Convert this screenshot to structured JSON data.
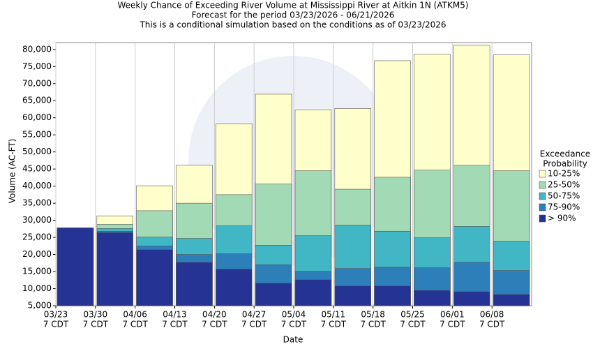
{
  "chart_data": {
    "type": "bar",
    "title": "Weekly Chance of Exceeding River Volume at Mississippi River at Aitkin 1N (ATKM5)",
    "subtitle": [
      "Forecast for the period 03/23/2026 - 06/21/2026",
      "This is a conditional simulation based on the conditions as of 03/23/2026"
    ],
    "x_label": "Date",
    "y_label": "Volume (AC-FT)",
    "legend_title": [
      "Exceedance",
      "Probability"
    ],
    "legend": "right",
    "categories": [
      [
        "03/23",
        "7 CDT"
      ],
      [
        "03/30",
        "7 CDT"
      ],
      [
        "04/06",
        "7 CDT"
      ],
      [
        "04/13",
        "7 CDT"
      ],
      [
        "04/20",
        "7 CDT"
      ],
      [
        "04/27",
        "7 CDT"
      ],
      [
        "05/04",
        "7 CDT"
      ],
      [
        "05/11",
        "7 CDT"
      ],
      [
        "05/18",
        "7 CDT"
      ],
      [
        "05/25",
        "7 CDT"
      ],
      [
        "06/01",
        "7 CDT"
      ],
      [
        "06/08",
        "7 CDT"
      ]
    ],
    "series": [
      {
        "name": "10-25%",
        "color": "#ffffcc",
        "values": [
          27800,
          31300,
          40100,
          46100,
          58200,
          66900,
          62300,
          62700,
          76700,
          78600,
          81200,
          78400
        ]
      },
      {
        "name": "25-50%",
        "color": "#a1dab4",
        "values": [
          27800,
          28800,
          32800,
          35000,
          37500,
          40600,
          44500,
          39100,
          42600,
          44700,
          46100,
          44500
        ]
      },
      {
        "name": "50-75%",
        "color": "#41b6c4",
        "values": [
          27800,
          27600,
          25100,
          24700,
          28400,
          22700,
          25500,
          28600,
          26800,
          24900,
          28200,
          23900
        ]
      },
      {
        "name": "75-90%",
        "color": "#2c7fb8",
        "values": [
          27800,
          26800,
          22500,
          20000,
          20200,
          17000,
          15100,
          15900,
          16300,
          16100,
          17700,
          15300
        ]
      },
      {
        "name": "> 90%",
        "color": "#253494",
        "values": [
          27800,
          26400,
          21400,
          17700,
          15700,
          11600,
          12600,
          10800,
          10800,
          9500,
          9100,
          8300
        ]
      }
    ],
    "ylim": [
      5000,
      82000
    ],
    "yticks": [
      {
        "value": 5000,
        "label": "5,000"
      },
      {
        "value": 10000,
        "label": "10,000"
      },
      {
        "value": 15000,
        "label": "15,000"
      },
      {
        "value": 20000,
        "label": "20,000"
      },
      {
        "value": 25000,
        "label": "25,000"
      },
      {
        "value": 30000,
        "label": "30,000"
      },
      {
        "value": 35000,
        "label": "35,000"
      },
      {
        "value": 40000,
        "label": "40,000"
      },
      {
        "value": 45000,
        "label": "45,000"
      },
      {
        "value": 50000,
        "label": "50,000"
      },
      {
        "value": 55000,
        "label": "55,000"
      },
      {
        "value": 60000,
        "label": "60,000"
      },
      {
        "value": 65000,
        "label": "65,000"
      },
      {
        "value": 70000,
        "label": "70,000"
      },
      {
        "value": 75000,
        "label": "75,000"
      },
      {
        "value": 80000,
        "label": "80,000"
      }
    ]
  }
}
